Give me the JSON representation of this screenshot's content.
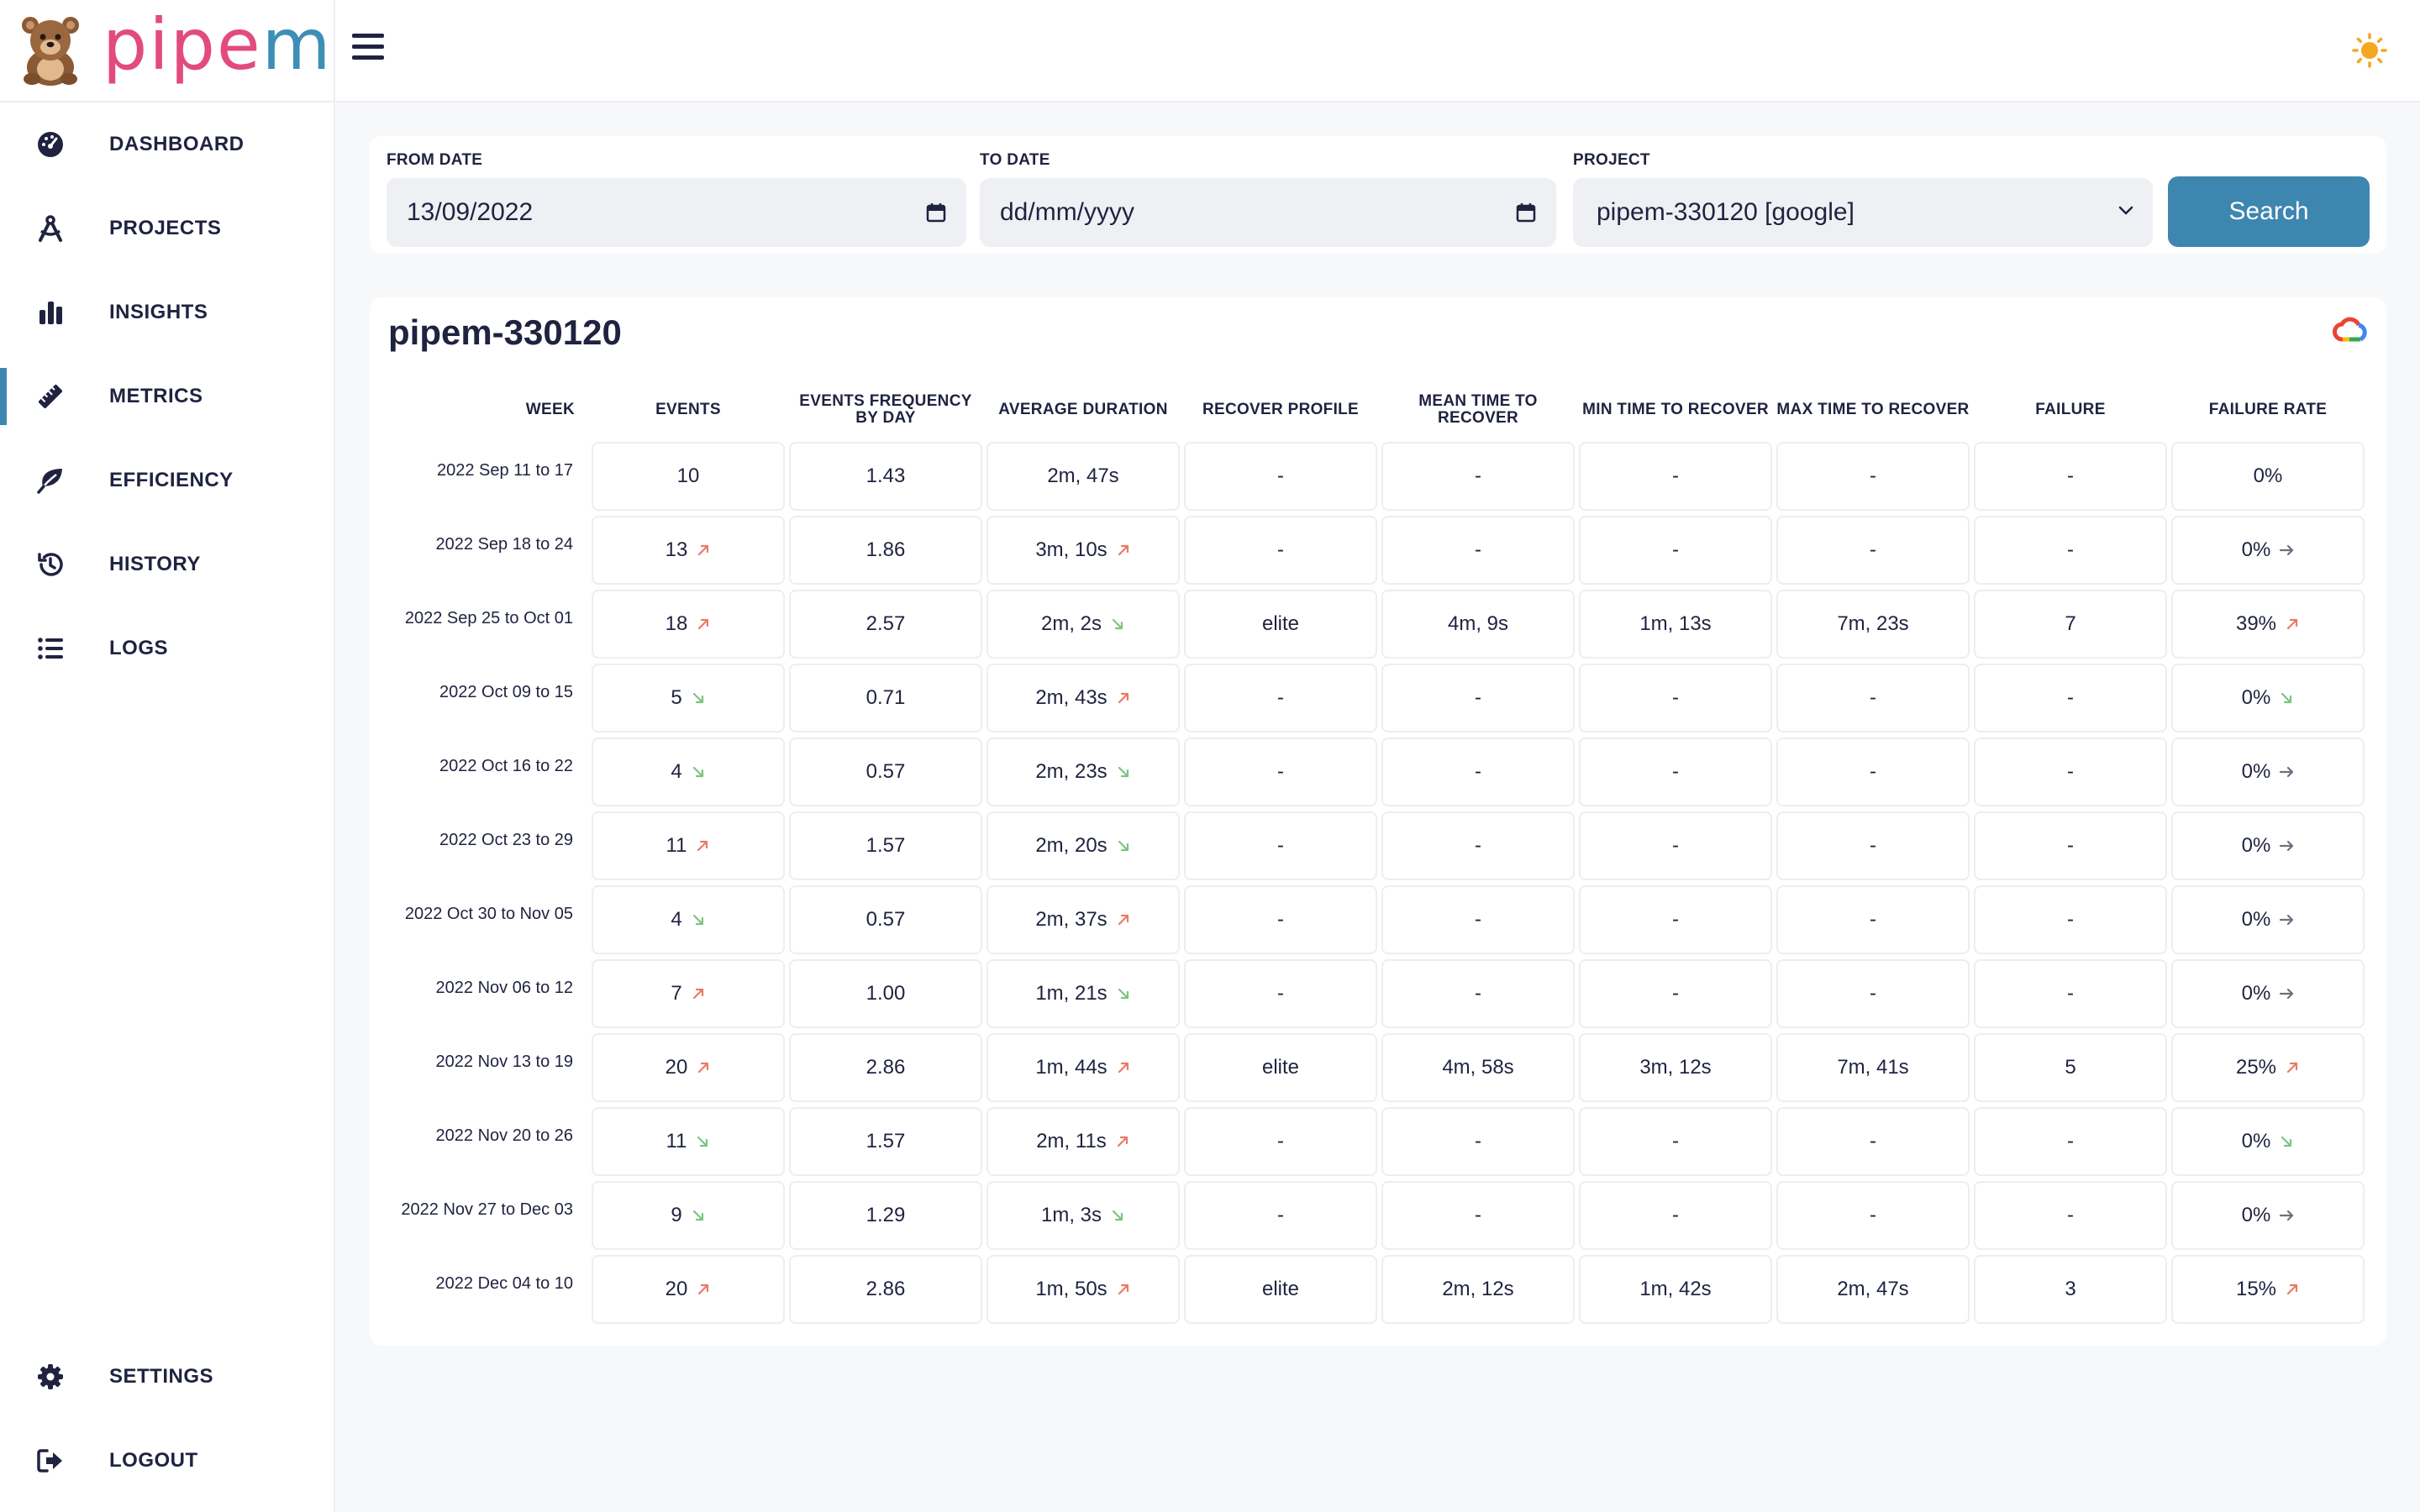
{
  "app": {
    "logo_text_a": "pipe",
    "logo_text_b": "m"
  },
  "nav": {
    "items": [
      {
        "label": "DASHBOARD",
        "icon": "gauge-icon"
      },
      {
        "label": "PROJECTS",
        "icon": "compass-icon"
      },
      {
        "label": "INSIGHTS",
        "icon": "bar-chart-icon"
      },
      {
        "label": "METRICS",
        "icon": "ruler-icon",
        "active": true
      },
      {
        "label": "EFFICIENCY",
        "icon": "leaf-icon"
      },
      {
        "label": "HISTORY",
        "icon": "history-icon"
      },
      {
        "label": "LOGS",
        "icon": "list-icon"
      }
    ],
    "bottom": [
      {
        "label": "SETTINGS",
        "icon": "gear-icon"
      },
      {
        "label": "LOGOUT",
        "icon": "logout-icon"
      }
    ]
  },
  "filters": {
    "from_label": "FROM DATE",
    "from_value": "13/09/2022",
    "to_label": "TO DATE",
    "to_placeholder": "dd/mm/yyyy",
    "project_label": "PROJECT",
    "project_value": "pipem-330120 [google]",
    "search_label": "Search"
  },
  "colors": {
    "accent": "#3d86b0",
    "trend_up": "#e97a68",
    "trend_down": "#7cc47f",
    "trend_flat": "#6b7080"
  },
  "table": {
    "title": "pipem-330120",
    "headers": [
      "WEEK",
      "EVENTS",
      "EVENTS FREQUENCY BY DAY",
      "AVERAGE DURATION",
      "RECOVER PROFILE",
      "MEAN TIME TO RECOVER",
      "MIN TIME TO RECOVER",
      "MAX TIME TO RECOVER",
      "FAILURE",
      "FAILURE RATE"
    ],
    "rows": [
      {
        "week": "2022 Sep 11 to 17",
        "events": "10",
        "events_trend": "",
        "freq": "1.43",
        "duration": "2m, 47s",
        "duration_trend": "",
        "profile": "-",
        "mean": "-",
        "min": "-",
        "max": "-",
        "failure": "-",
        "rate": "0%",
        "rate_trend": ""
      },
      {
        "week": "2022 Sep 18 to 24",
        "events": "13",
        "events_trend": "up",
        "freq": "1.86",
        "duration": "3m, 10s",
        "duration_trend": "up",
        "profile": "-",
        "mean": "-",
        "min": "-",
        "max": "-",
        "failure": "-",
        "rate": "0%",
        "rate_trend": "flat"
      },
      {
        "week": "2022 Sep 25 to Oct 01",
        "events": "18",
        "events_trend": "up",
        "freq": "2.57",
        "duration": "2m, 2s",
        "duration_trend": "down",
        "profile": "elite",
        "mean": "4m, 9s",
        "min": "1m, 13s",
        "max": "7m, 23s",
        "failure": "7",
        "rate": "39%",
        "rate_trend": "up"
      },
      {
        "week": "2022 Oct 09 to 15",
        "events": "5",
        "events_trend": "down",
        "freq": "0.71",
        "duration": "2m, 43s",
        "duration_trend": "up",
        "profile": "-",
        "mean": "-",
        "min": "-",
        "max": "-",
        "failure": "-",
        "rate": "0%",
        "rate_trend": "down"
      },
      {
        "week": "2022 Oct 16 to 22",
        "events": "4",
        "events_trend": "down",
        "freq": "0.57",
        "duration": "2m, 23s",
        "duration_trend": "down",
        "profile": "-",
        "mean": "-",
        "min": "-",
        "max": "-",
        "failure": "-",
        "rate": "0%",
        "rate_trend": "flat"
      },
      {
        "week": "2022 Oct 23 to 29",
        "events": "11",
        "events_trend": "up",
        "freq": "1.57",
        "duration": "2m, 20s",
        "duration_trend": "down",
        "profile": "-",
        "mean": "-",
        "min": "-",
        "max": "-",
        "failure": "-",
        "rate": "0%",
        "rate_trend": "flat"
      },
      {
        "week": "2022 Oct 30 to Nov 05",
        "events": "4",
        "events_trend": "down",
        "freq": "0.57",
        "duration": "2m, 37s",
        "duration_trend": "up",
        "profile": "-",
        "mean": "-",
        "min": "-",
        "max": "-",
        "failure": "-",
        "rate": "0%",
        "rate_trend": "flat"
      },
      {
        "week": "2022 Nov 06 to 12",
        "events": "7",
        "events_trend": "up",
        "freq": "1.00",
        "duration": "1m, 21s",
        "duration_trend": "down",
        "profile": "-",
        "mean": "-",
        "min": "-",
        "max": "-",
        "failure": "-",
        "rate": "0%",
        "rate_trend": "flat"
      },
      {
        "week": "2022 Nov 13 to 19",
        "events": "20",
        "events_trend": "up",
        "freq": "2.86",
        "duration": "1m, 44s",
        "duration_trend": "up",
        "profile": "elite",
        "mean": "4m, 58s",
        "min": "3m, 12s",
        "max": "7m, 41s",
        "failure": "5",
        "rate": "25%",
        "rate_trend": "up"
      },
      {
        "week": "2022 Nov 20 to 26",
        "events": "11",
        "events_trend": "down",
        "freq": "1.57",
        "duration": "2m, 11s",
        "duration_trend": "up",
        "profile": "-",
        "mean": "-",
        "min": "-",
        "max": "-",
        "failure": "-",
        "rate": "0%",
        "rate_trend": "down"
      },
      {
        "week": "2022 Nov 27 to Dec 03",
        "events": "9",
        "events_trend": "down",
        "freq": "1.29",
        "duration": "1m, 3s",
        "duration_trend": "down",
        "profile": "-",
        "mean": "-",
        "min": "-",
        "max": "-",
        "failure": "-",
        "rate": "0%",
        "rate_trend": "flat"
      },
      {
        "week": "2022 Dec 04 to 10",
        "events": "20",
        "events_trend": "up",
        "freq": "2.86",
        "duration": "1m, 50s",
        "duration_trend": "up",
        "profile": "elite",
        "mean": "2m, 12s",
        "min": "1m, 42s",
        "max": "2m, 47s",
        "failure": "3",
        "rate": "15%",
        "rate_trend": "up"
      }
    ]
  }
}
